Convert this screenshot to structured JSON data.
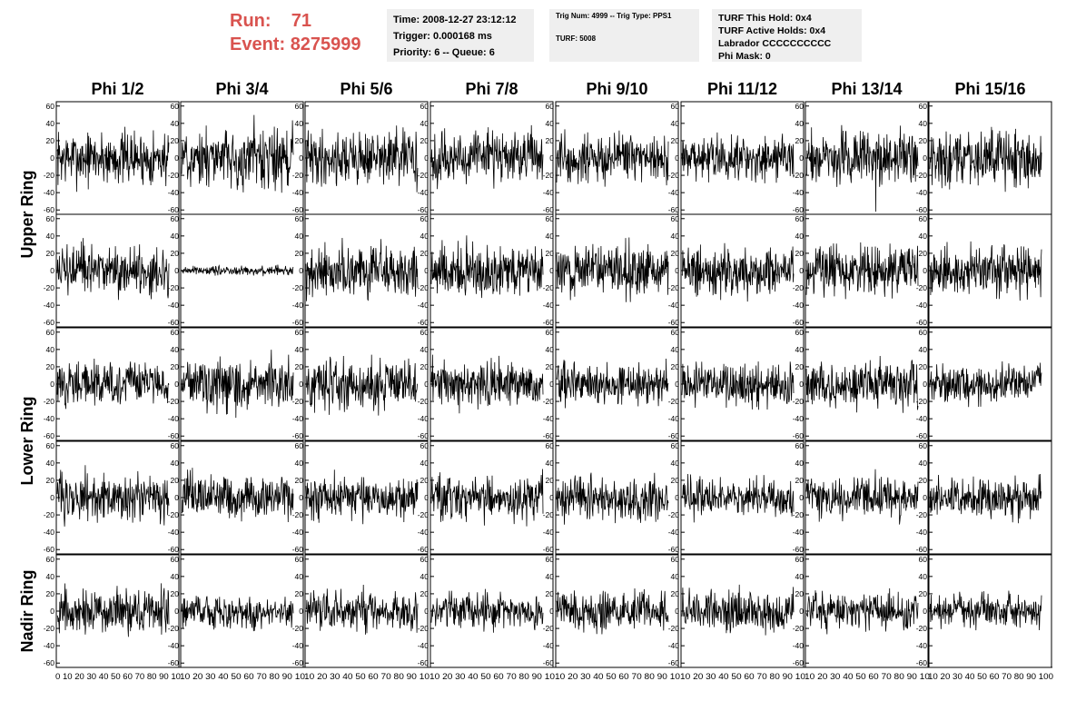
{
  "header": {
    "run_label": "Run:",
    "run_value": "71",
    "event_label": "Event:",
    "event_value": "8275999",
    "time": "Time: 2008-12-27 23:12:12",
    "trigger": "Trigger: 0.000168 ms",
    "priority": "Priority: 6 -- Queue: 6",
    "trig_num": "Trig Num: 4999 -- Trig Type: PPS1",
    "turf": "TURF: 5008",
    "turf_this_hold": "TURF This Hold: 0x4",
    "turf_active_holds": "TURF Active Holds: 0x4",
    "labrador": "Labrador CCCCCCCCCC",
    "phi_mask": "Phi Mask: 0"
  },
  "colors": {
    "run_text": "#d9534f",
    "info_bg": "#efefef",
    "trace": "#000000"
  },
  "chart_data": {
    "type": "line",
    "layout": "grid of 5 rings x 8 phi sectors of waveform panels",
    "columns": [
      "Phi 1/2",
      "Phi 3/4",
      "Phi 5/6",
      "Phi 7/8",
      "Phi 9/10",
      "Phi 11/12",
      "Phi 13/14",
      "Phi 15/16"
    ],
    "ring_labels": [
      {
        "label": "Upper Ring",
        "rows": [
          0,
          1
        ]
      },
      {
        "label": "Lower Ring",
        "rows": [
          2,
          3
        ]
      },
      {
        "label": "Nadir Ring",
        "rows": [
          4
        ]
      }
    ],
    "ylim": [
      -65,
      65
    ],
    "y_ticks": [
      "60",
      "40",
      "20",
      "0",
      "-20",
      "-40",
      "-60"
    ],
    "xlim": [
      0,
      100
    ],
    "x_tick_strip": [
      "0 10 20 30 40 50 60 70 80 90 10",
      "10 20 30 40 50 60 70 80 90 10",
      "10 20 30 40 50 60 70 80 90 10",
      "10 20 30 40 50 60 70 80 90 10",
      "10 20 30 40 50 60 70 80 90 10",
      "10 20 30 40 50 60 70 80 90 10",
      "10 20 30 40 50 60 70 80 90 10",
      "10 20 30 40 50 60 70 80 90 100"
    ],
    "samples_per_trace": 260,
    "trace_amplitude": [
      [
        18,
        20,
        18,
        17,
        17,
        16,
        18,
        18
      ],
      [
        17,
        3,
        17,
        17,
        17,
        16,
        17,
        16
      ],
      [
        15,
        16,
        17,
        15,
        14,
        14,
        16,
        13
      ],
      [
        16,
        15,
        15,
        14,
        14,
        13,
        14,
        13
      ],
      [
        14,
        12,
        13,
        12,
        13,
        13,
        12,
        11
      ]
    ],
    "notable_spikes": [
      {
        "row": 0,
        "col": 6,
        "value": -62
      }
    ],
    "grid": false
  }
}
